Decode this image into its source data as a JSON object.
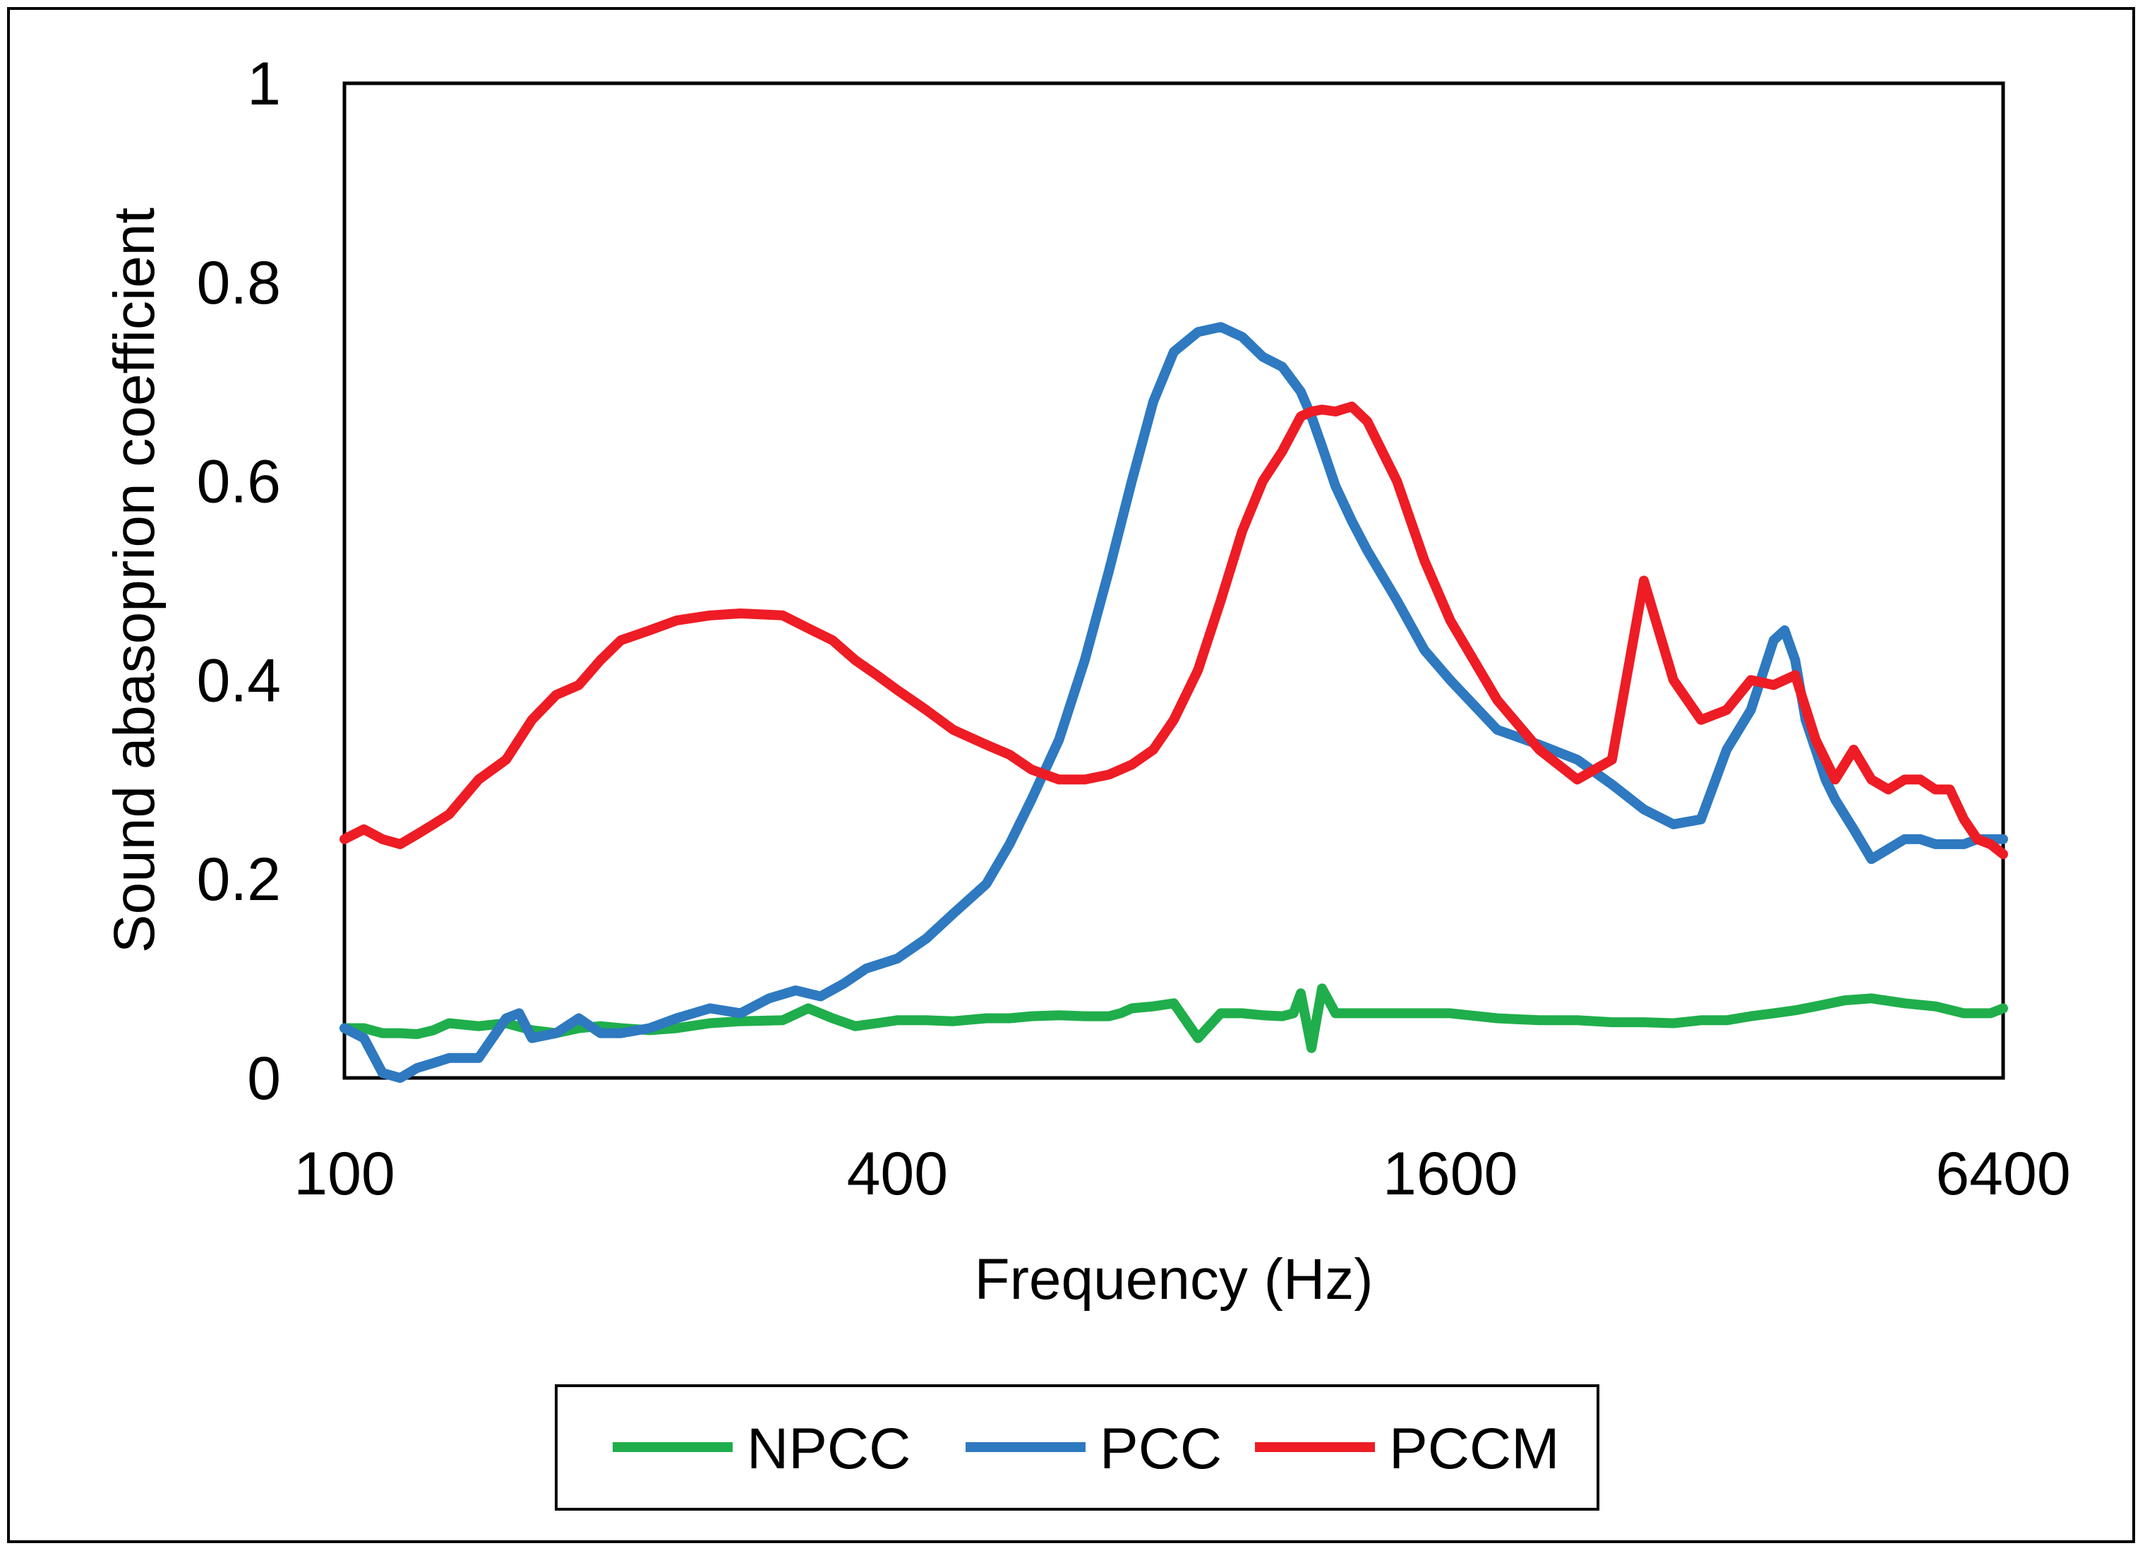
{
  "chart_data": {
    "type": "line",
    "title": "",
    "xlabel": "Frequency (Hz)",
    "ylabel": "Sound abasoprion coefficient",
    "x_scale": "log2",
    "xlim": [
      100,
      6400
    ],
    "ylim": [
      0,
      1
    ],
    "x_ticks": [
      "100",
      "400",
      "1600",
      "6400"
    ],
    "y_ticks": [
      "0",
      "0.2",
      "0.4",
      "0.6",
      "0.8",
      "1"
    ],
    "grid": false,
    "legend_position": "bottom",
    "series": [
      {
        "name": "NPCC",
        "color": "#1fae4b",
        "x": [
          100,
          105,
          110,
          115,
          120,
          125,
          130,
          140,
          150,
          160,
          170,
          180,
          190,
          200,
          215,
          230,
          250,
          270,
          300,
          320,
          340,
          360,
          380,
          400,
          430,
          460,
          500,
          530,
          560,
          600,
          640,
          680,
          700,
          720,
          760,
          800,
          850,
          900,
          950,
          1000,
          1050,
          1080,
          1100,
          1130,
          1160,
          1200,
          1300,
          1400,
          1500,
          1600,
          1800,
          2000,
          2200,
          2400,
          2600,
          2800,
          3000,
          3200,
          3400,
          3600,
          3800,
          4000,
          4300,
          4600,
          5000,
          5400,
          5800,
          6200,
          6400
        ],
        "values": [
          0.05,
          0.05,
          0.045,
          0.045,
          0.044,
          0.048,
          0.055,
          0.052,
          0.055,
          0.048,
          0.045,
          0.05,
          0.052,
          0.05,
          0.048,
          0.05,
          0.055,
          0.057,
          0.058,
          0.07,
          0.06,
          0.052,
          0.055,
          0.058,
          0.058,
          0.057,
          0.06,
          0.06,
          0.062,
          0.063,
          0.062,
          0.062,
          0.065,
          0.07,
          0.072,
          0.075,
          0.04,
          0.065,
          0.065,
          0.063,
          0.062,
          0.065,
          0.085,
          0.03,
          0.09,
          0.065,
          0.065,
          0.065,
          0.065,
          0.065,
          0.06,
          0.058,
          0.058,
          0.056,
          0.056,
          0.055,
          0.058,
          0.058,
          0.062,
          0.065,
          0.068,
          0.072,
          0.078,
          0.08,
          0.075,
          0.072,
          0.065,
          0.065,
          0.07
        ]
      },
      {
        "name": "PCC",
        "color": "#2e79c0",
        "x": [
          100,
          105,
          110,
          115,
          120,
          125,
          130,
          140,
          150,
          155,
          160,
          170,
          180,
          190,
          200,
          215,
          230,
          250,
          270,
          290,
          310,
          330,
          350,
          370,
          400,
          430,
          460,
          500,
          530,
          560,
          600,
          640,
          680,
          720,
          760,
          800,
          850,
          900,
          950,
          1000,
          1050,
          1100,
          1130,
          1160,
          1200,
          1250,
          1300,
          1400,
          1500,
          1600,
          1800,
          2000,
          2200,
          2400,
          2600,
          2800,
          3000,
          3200,
          3400,
          3600,
          3700,
          3800,
          3900,
          4000,
          4100,
          4200,
          4400,
          4600,
          5000,
          5200,
          5400,
          5600,
          5800,
          6000,
          6200,
          6400
        ],
        "values": [
          0.05,
          0.04,
          0.005,
          0.0,
          0.01,
          0.015,
          0.02,
          0.02,
          0.06,
          0.065,
          0.04,
          0.045,
          0.06,
          0.045,
          0.045,
          0.05,
          0.06,
          0.07,
          0.065,
          0.08,
          0.088,
          0.082,
          0.095,
          0.11,
          0.12,
          0.14,
          0.165,
          0.195,
          0.235,
          0.28,
          0.34,
          0.42,
          0.51,
          0.6,
          0.68,
          0.73,
          0.75,
          0.755,
          0.745,
          0.725,
          0.715,
          0.69,
          0.665,
          0.635,
          0.595,
          0.56,
          0.53,
          0.48,
          0.43,
          0.4,
          0.35,
          0.335,
          0.32,
          0.295,
          0.27,
          0.255,
          0.26,
          0.33,
          0.37,
          0.44,
          0.45,
          0.42,
          0.36,
          0.33,
          0.3,
          0.28,
          0.25,
          0.22,
          0.24,
          0.24,
          0.235,
          0.235,
          0.235,
          0.24,
          0.24,
          0.24
        ]
      },
      {
        "name": "PCCM",
        "color": "#ee1c24",
        "x": [
          100,
          105,
          110,
          115,
          120,
          125,
          130,
          140,
          150,
          160,
          170,
          180,
          190,
          200,
          215,
          230,
          250,
          270,
          300,
          320,
          340,
          360,
          380,
          400,
          430,
          460,
          500,
          530,
          560,
          600,
          640,
          680,
          720,
          760,
          800,
          850,
          900,
          950,
          1000,
          1050,
          1100,
          1130,
          1160,
          1200,
          1250,
          1300,
          1400,
          1500,
          1600,
          1800,
          2000,
          2200,
          2400,
          2600,
          2800,
          3000,
          3200,
          3400,
          3600,
          3800,
          4000,
          4200,
          4400,
          4600,
          4800,
          5000,
          5200,
          5400,
          5600,
          5800,
          6000,
          6200,
          6400
        ],
        "values": [
          0.24,
          0.25,
          0.24,
          0.235,
          0.245,
          0.255,
          0.265,
          0.3,
          0.32,
          0.36,
          0.385,
          0.395,
          0.42,
          0.44,
          0.45,
          0.46,
          0.465,
          0.467,
          0.465,
          0.452,
          0.44,
          0.42,
          0.405,
          0.39,
          0.37,
          0.35,
          0.335,
          0.325,
          0.31,
          0.3,
          0.3,
          0.305,
          0.315,
          0.33,
          0.36,
          0.41,
          0.48,
          0.55,
          0.6,
          0.63,
          0.665,
          0.67,
          0.672,
          0.67,
          0.675,
          0.66,
          0.6,
          0.52,
          0.46,
          0.38,
          0.33,
          0.3,
          0.32,
          0.5,
          0.4,
          0.36,
          0.37,
          0.4,
          0.395,
          0.405,
          0.34,
          0.3,
          0.33,
          0.3,
          0.29,
          0.3,
          0.3,
          0.29,
          0.29,
          0.26,
          0.24,
          0.235,
          0.225
        ]
      }
    ]
  }
}
